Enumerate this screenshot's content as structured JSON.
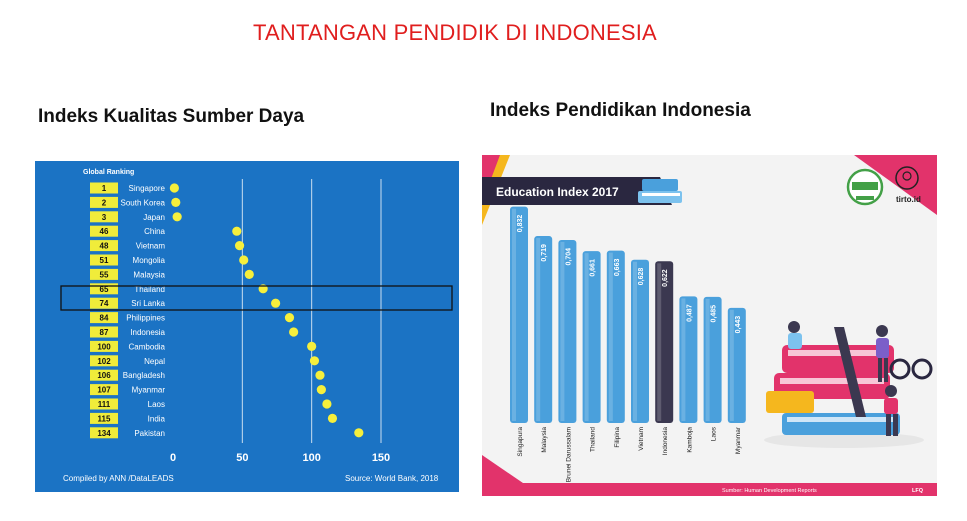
{
  "page": {
    "title": "TANTANGAN  PENDIDIK DI INDONESIA",
    "left_heading": "Indeks Kualitas Sumber Daya",
    "right_heading": "Indeks Pendidikan Indonesia"
  },
  "colors": {
    "title_red": "#e01e1e",
    "left_panel_bg": "#1b73c4",
    "rank_box": "#f0ec3a",
    "dot": "#f6ef3c",
    "bar_blue": "#4aa0dc",
    "bar_indonesia": "#3b3850",
    "banner_dark": "#2a2740",
    "accent_pink": "#e2336b",
    "accent_yellow": "#f5b71e"
  },
  "left_chart": {
    "header": "Global Ranking",
    "footer_left": "Compiled by ANN /DataLEADS",
    "footer_right": "Source:  World Bank, 2018"
  },
  "right_chart": {
    "banner": "Education Index 2017",
    "footer_source": "Sumber: Human Development Reports",
    "footer_tag": "LFQ",
    "logo_text": "tirto.id"
  },
  "chart_data": [
    {
      "type": "scatter",
      "title": "Global Ranking",
      "x": [
        1,
        2,
        3,
        46,
        48,
        51,
        55,
        65,
        74,
        84,
        87,
        100,
        102,
        106,
        107,
        111,
        115,
        134
      ],
      "categories": [
        "Singapore",
        "South Korea",
        "Japan",
        "China",
        "Vietnam",
        "Mongolia",
        "Malaysia",
        "Thailand",
        "Sri Lanka",
        "Philippines",
        "Indonesia",
        "Cambodia",
        "Nepal",
        "Bangladesh",
        "Myanmar",
        "Laos",
        "India",
        "Pakistan"
      ],
      "xticks": [
        0,
        50,
        100,
        150
      ],
      "xlim": [
        0,
        150
      ],
      "highlight": "Sri Lanka",
      "grid": true
    },
    {
      "type": "bar",
      "title": "Education Index 2017",
      "categories": [
        "Singapura",
        "Malaysia",
        "Brunei Darussalam",
        "Thailand",
        "Filipina",
        "Vietnam",
        "Indonesia",
        "Kamboja",
        "Laos",
        "Myanmar"
      ],
      "values": [
        0.832,
        0.719,
        0.704,
        0.661,
        0.663,
        0.628,
        0.622,
        0.487,
        0.485,
        0.443
      ],
      "value_labels": [
        "0,832",
        "0,719",
        "0,704",
        "0,661",
        "0,663",
        "0,628",
        "0,622",
        "0,487",
        "0,485",
        "0,443"
      ],
      "highlight": "Indonesia"
    }
  ]
}
